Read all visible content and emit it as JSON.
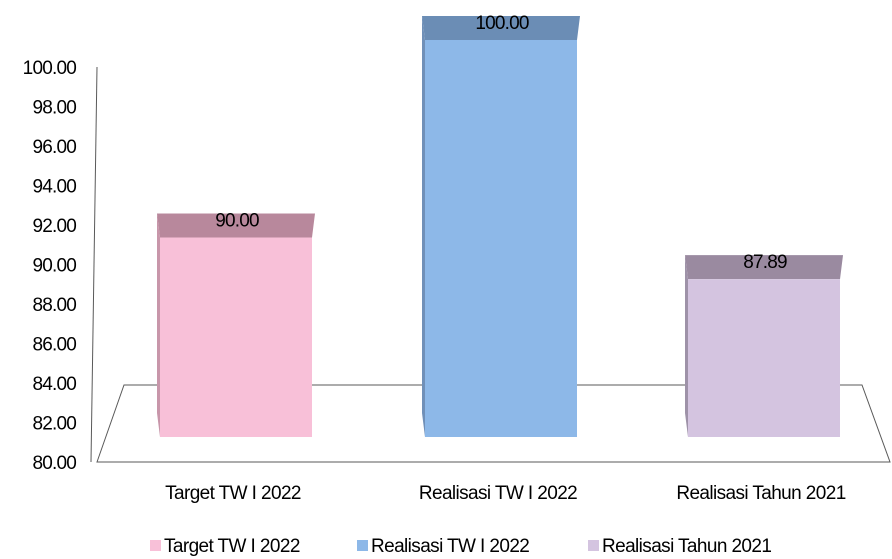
{
  "chart_data": {
    "type": "bar",
    "title": "",
    "xlabel": "",
    "ylabel": "",
    "ylim": [
      80,
      100
    ],
    "yticks": [
      80,
      82,
      84,
      86,
      88,
      90,
      92,
      94,
      96,
      98,
      100
    ],
    "categories": [
      "Target TW I 2022",
      "Realisasi TW I 2022",
      "Realisasi Tahun 2021"
    ],
    "values": [
      90.0,
      100.0,
      87.89
    ],
    "data_labels": [
      "90.00",
      "100.00",
      "87.89"
    ],
    "colors": [
      "#f8c0d8",
      "#8db8e8",
      "#d4c4e0"
    ],
    "top_colors": [
      "#b8889c",
      "#6b8db5",
      "#9a8aa0"
    ],
    "side_colors": [
      "#c896aa",
      "#7090b8",
      "#9e92a8"
    ],
    "legend": {
      "position": "bottom",
      "entries": [
        "Target TW I 2022",
        "Realisasi TW I 2022",
        "Realisasi Tahun 2021"
      ]
    },
    "grid": false,
    "style": "3d"
  }
}
